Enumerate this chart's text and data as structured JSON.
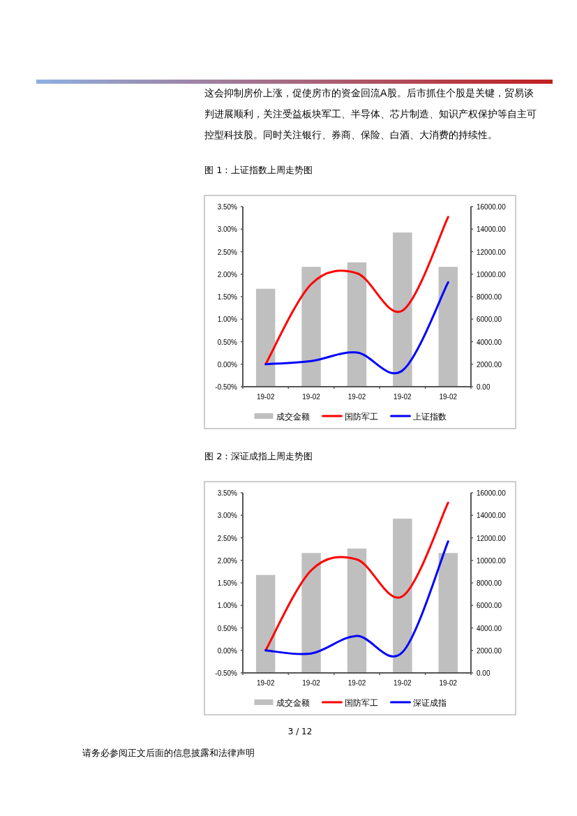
{
  "chart_data": [
    {
      "type": "other",
      "annotations": [
        "这会抑制房价上涨，促使房市的资金回流A股。后市抓住个股是关键，贸易谈判进展顺利，关注受益板块军工、半导体、芯片制造、知识产权保护等自主可控型科技股。同时关注银行、券商、保险、白酒、大消费的持续性。",
        "3 / 12",
        "请务必参阅正文后面的信息披露和法律声明"
      ]
    },
    {
      "type": "bar",
      "title": "图 1：上证指数上周走势图",
      "categories": [
        "19-02",
        "19-02",
        "19-02",
        "19-02",
        "19-02"
      ],
      "series": [
        {
          "name": "成交金额",
          "type": "bar",
          "axis": "y2",
          "color": "#bfbfbf",
          "values": [
            8700,
            10650,
            11050,
            13700,
            10650
          ]
        },
        {
          "name": "国防军工",
          "type": "line",
          "color": "#ff0000",
          "values": [
            0.0,
            1.78,
            2.02,
            1.19,
            3.27
          ]
        },
        {
          "name": "上证指数",
          "type": "line",
          "color": "#0000ff",
          "values": [
            0.0,
            0.07,
            0.26,
            -0.14,
            1.82
          ]
        }
      ],
      "ylim": [
        -0.5,
        3.5
      ],
      "yticks": [
        {
          "value": -0.5,
          "label": "-0.50%"
        },
        {
          "value": 0,
          "label": "0.00%"
        },
        {
          "value": 0.5,
          "label": "0.50%"
        },
        {
          "value": 1,
          "label": "1.00%"
        },
        {
          "value": 1.5,
          "label": "1.50%"
        },
        {
          "value": 2,
          "label": "2.00%"
        },
        {
          "value": 2.5,
          "label": "2.50%"
        },
        {
          "value": 3,
          "label": "3.00%"
        },
        {
          "value": 3.5,
          "label": "3.50%"
        }
      ],
      "y2lim": [
        0,
        16000
      ],
      "y2ticks": [
        {
          "value": 0,
          "label": "0.00"
        },
        {
          "value": 2000,
          "label": "2000.00"
        },
        {
          "value": 4000,
          "label": "4000.00"
        },
        {
          "value": 6000,
          "label": "6000.00"
        },
        {
          "value": 8000,
          "label": "8000.00"
        },
        {
          "value": 10000,
          "label": "10000.00"
        },
        {
          "value": 12000,
          "label": "12000.00"
        },
        {
          "value": 14000,
          "label": "14000.00"
        },
        {
          "value": 16000,
          "label": "16000.00"
        }
      ],
      "legend": "bottom"
    },
    {
      "type": "bar",
      "title": "图 2：深证成指上周走势图",
      "categories": [
        "19-02",
        "19-02",
        "19-02",
        "19-02",
        "19-02"
      ],
      "series": [
        {
          "name": "成交金额",
          "type": "bar",
          "axis": "y2",
          "color": "#bfbfbf",
          "values": [
            8700,
            10650,
            11050,
            13700,
            10650
          ]
        },
        {
          "name": "国防军工",
          "type": "line",
          "color": "#ff0000",
          "values": [
            0.0,
            1.78,
            2.02,
            1.2,
            3.28
          ]
        },
        {
          "name": "深证成指",
          "type": "line",
          "color": "#0000ff",
          "values": [
            0.0,
            -0.07,
            0.32,
            -0.04,
            2.42
          ]
        }
      ],
      "ylim": [
        -0.5,
        3.5
      ],
      "yticks": [
        {
          "value": -0.5,
          "label": "-0.50%"
        },
        {
          "value": 0,
          "label": "0.00%"
        },
        {
          "value": 0.5,
          "label": "0.50%"
        },
        {
          "value": 1,
          "label": "1.00%"
        },
        {
          "value": 1.5,
          "label": "1.50%"
        },
        {
          "value": 2,
          "label": "2.00%"
        },
        {
          "value": 2.5,
          "label": "2.50%"
        },
        {
          "value": 3,
          "label": "3.00%"
        },
        {
          "value": 3.5,
          "label": "3.50%"
        }
      ],
      "y2lim": [
        0,
        16000
      ],
      "y2ticks": [
        {
          "value": 0,
          "label": "0.00"
        },
        {
          "value": 2000,
          "label": "2000.00"
        },
        {
          "value": 4000,
          "label": "4000.00"
        },
        {
          "value": 6000,
          "label": "6000.00"
        },
        {
          "value": 8000,
          "label": "8000.00"
        },
        {
          "value": 10000,
          "label": "10000.00"
        },
        {
          "value": 12000,
          "label": "12000.00"
        },
        {
          "value": 14000,
          "label": "14000.00"
        },
        {
          "value": 16000,
          "label": "16000.00"
        }
      ],
      "legend": "bottom"
    }
  ]
}
